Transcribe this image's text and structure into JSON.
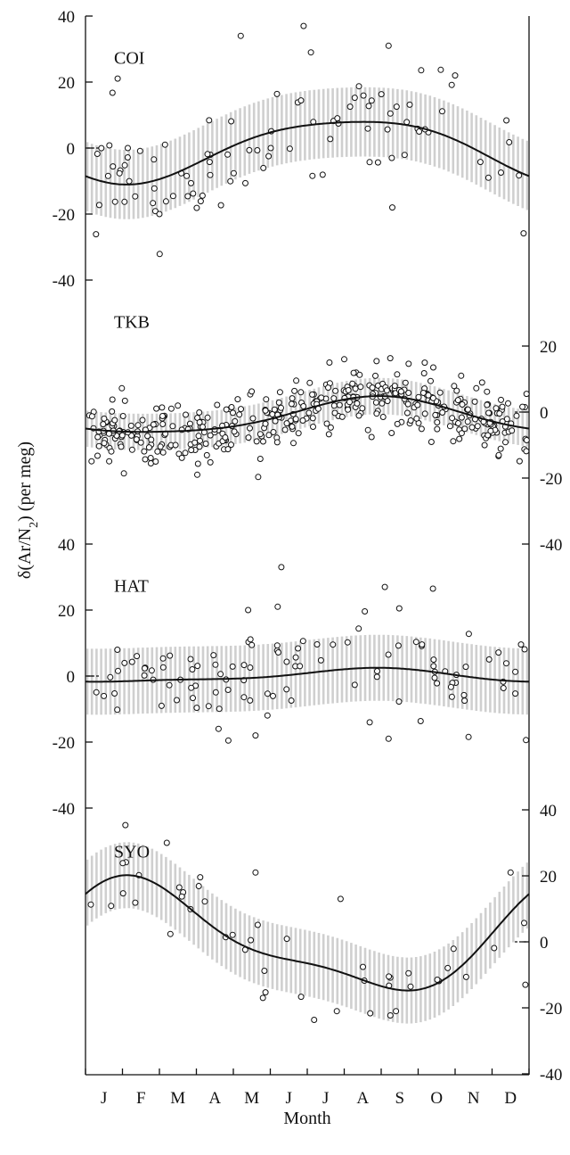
{
  "chart_data": {
    "type": "scatter",
    "xlabel": "Month",
    "ylabel": "δ(Ar/N2)  (per meg)",
    "month_labels": [
      "J",
      "F",
      "M",
      "A",
      "M",
      "J",
      "J",
      "A",
      "S",
      "O",
      "N",
      "D"
    ],
    "panels": [
      {
        "station": "COI",
        "axis_side": "left",
        "ylim": [
          -40,
          40
        ],
        "ticks": [
          -40,
          -20,
          0,
          20,
          40
        ],
        "tick_labels": [
          "-40",
          "-20",
          "0",
          "20",
          "40"
        ],
        "band_halfwidth": 10.5,
        "harmonic": {
          "mean": 0,
          "a1": -5.5,
          "b1": -7.7,
          "a2": -1.4,
          "b2": -0.8
        },
        "n_points": 95,
        "scatter_sd": 9,
        "seed": 11,
        "outliers": [
          [
            5.9,
            37
          ],
          [
            4.2,
            34
          ],
          [
            8.2,
            31
          ],
          [
            6.1,
            29
          ],
          [
            10.0,
            22
          ],
          [
            2.0,
            -20
          ],
          [
            8.3,
            -18
          ]
        ]
      },
      {
        "station": "TKB",
        "axis_side": "right",
        "ylim": [
          -40,
          40
        ],
        "ticks": [
          -40,
          -20,
          0,
          20
        ],
        "tick_labels": [
          "-40",
          "-20",
          "0",
          "20"
        ],
        "band_halfwidth": 5.5,
        "harmonic": {
          "mean": -1.5,
          "a1": -4.5,
          "b1": -3,
          "a2": 0.8,
          "b2": -0.5
        },
        "n_points": 420,
        "scatter_sd": 4.6,
        "seed": 23,
        "outliers": [
          [
            7.0,
            16
          ],
          [
            6.6,
            15
          ],
          [
            1.9,
            -15
          ]
        ]
      },
      {
        "station": "HAT",
        "axis_side": "left",
        "ylim": [
          -40,
          40
        ],
        "ticks": [
          -40,
          -20,
          0,
          20,
          40
        ],
        "tick_labels": [
          "-40",
          "-20",
          "0",
          "20",
          "40"
        ],
        "band_halfwidth": 10,
        "harmonic": {
          "mean": 0,
          "a1": -1.4,
          "b1": -1.3,
          "a2": 0.5,
          "b2": -0.4
        },
        "n_points": 105,
        "scatter_sd": 7.5,
        "seed": 37,
        "outliers": [
          [
            5.3,
            33
          ],
          [
            8.1,
            27
          ],
          [
            9.4,
            26.5
          ],
          [
            4.4,
            20
          ],
          [
            5.2,
            21
          ],
          [
            4.6,
            -18
          ],
          [
            3.6,
            -16
          ],
          [
            8.2,
            -19
          ]
        ]
      },
      {
        "station": "SYO",
        "axis_side": "right",
        "ylim": [
          -40,
          40
        ],
        "ticks": [
          -40,
          -20,
          0,
          20,
          40
        ],
        "tick_labels": [
          "-40",
          "-20",
          "0",
          "20",
          "40"
        ],
        "band_halfwidth": 10,
        "harmonic": {
          "mean": 0.5,
          "a1": 11.5,
          "b1": 10.5,
          "a2": 3.5,
          "b2": 3.5
        },
        "n_points": 42,
        "scatter_sd": 7,
        "seed": 53,
        "outliers": [
          [
            2.2,
            30
          ],
          [
            4.6,
            21
          ],
          [
            6.9,
            13
          ],
          [
            11.5,
            21
          ],
          [
            4.8,
            -17
          ],
          [
            6.8,
            -21
          ],
          [
            11.9,
            -13
          ],
          [
            8.4,
            -21
          ]
        ]
      }
    ]
  }
}
